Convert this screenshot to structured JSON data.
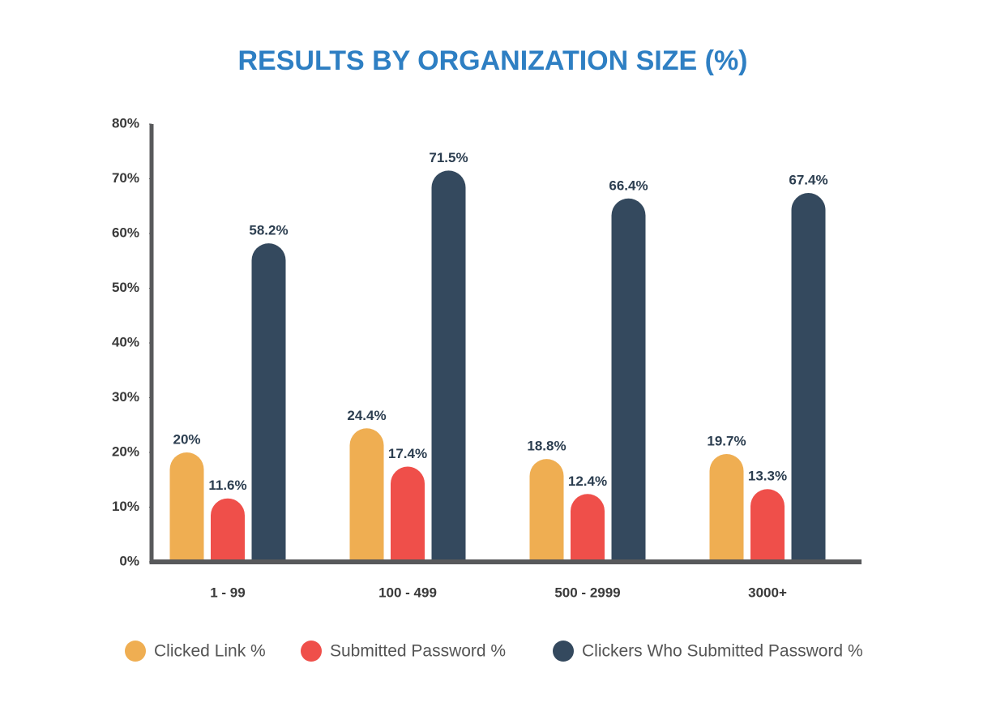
{
  "chart_data": {
    "type": "bar",
    "title": "RESULTS BY ORGANIZATION SIZE (%)",
    "title_color": "#2e7fc3",
    "categories": [
      "1 - 99",
      "100 - 499",
      "500 - 2999",
      "3000+"
    ],
    "series": [
      {
        "name": "Clicked Link %",
        "color": "#efae52",
        "values": [
          20,
          24.4,
          18.8,
          19.7
        ],
        "value_labels": [
          "20%",
          "24.4%",
          "18.8%",
          "19.7%"
        ]
      },
      {
        "name": "Submitted Password %",
        "color": "#ef4f4a",
        "values": [
          11.6,
          17.4,
          12.4,
          13.3
        ],
        "value_labels": [
          "11.6%",
          "17.4%",
          "12.4%",
          "13.3%"
        ]
      },
      {
        "name": "Clickers Who Submitted Password %",
        "color": "#34495e",
        "values": [
          58.2,
          71.5,
          66.4,
          67.4
        ],
        "value_labels": [
          "58.2%",
          "71.5%",
          "66.4%",
          "67.4%"
        ]
      }
    ],
    "ylim": [
      0,
      80
    ],
    "yticks": [
      {
        "value": 0,
        "label": "0%"
      },
      {
        "value": 10,
        "label": "10%"
      },
      {
        "value": 20,
        "label": "20%"
      },
      {
        "value": 30,
        "label": "30%"
      },
      {
        "value": 40,
        "label": "40%"
      },
      {
        "value": 50,
        "label": "50%"
      },
      {
        "value": 60,
        "label": "60%"
      },
      {
        "value": 70,
        "label": "70%"
      },
      {
        "value": 80,
        "label": "80%"
      }
    ],
    "grid": false,
    "legend": "bottom"
  }
}
